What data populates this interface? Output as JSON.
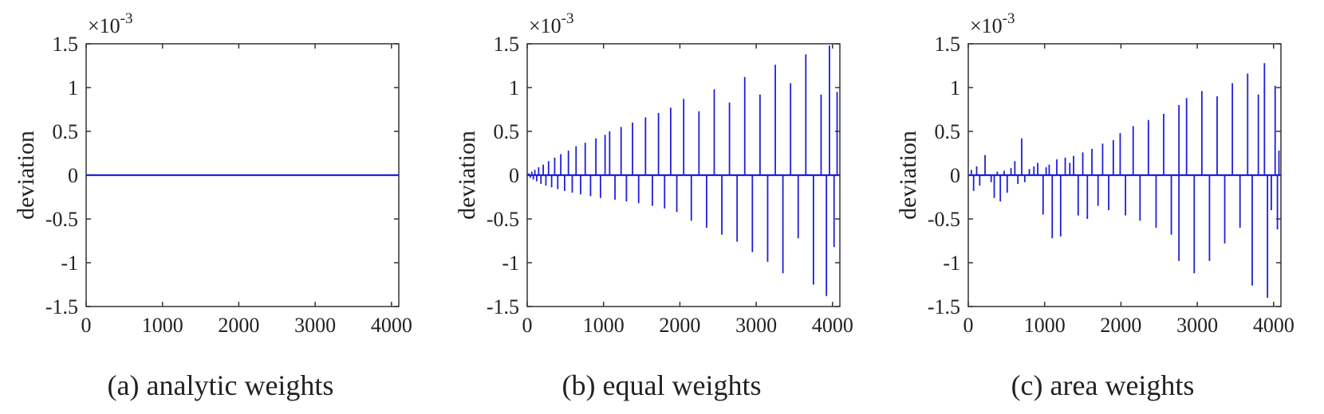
{
  "chart_data": [
    {
      "type": "line",
      "caption": "(a) analytic weights",
      "ylabel": "deviation",
      "xlim": [
        0,
        4096
      ],
      "ylim": [
        -1.5,
        1.5
      ],
      "x_ticks": [
        0,
        1000,
        2000,
        3000,
        4000
      ],
      "x_tick_labels": [
        "0",
        "1000",
        "2000",
        "3000",
        "4000"
      ],
      "y_ticks": [
        -1.5,
        -1,
        -0.5,
        0,
        0.5,
        1,
        1.5
      ],
      "y_tick_labels": [
        "-1.5",
        "-1",
        "-0.5",
        "0",
        "0.5",
        "1",
        "1.5"
      ],
      "scale_multiplier": "10",
      "scale_exponent": "-3",
      "series_color": "#1f1fd6",
      "grid": false,
      "spikes": []
    },
    {
      "type": "line",
      "caption": "(b) equal weights",
      "ylabel": "deviation",
      "xlim": [
        0,
        4096
      ],
      "ylim": [
        -1.5,
        1.5
      ],
      "x_ticks": [
        0,
        1000,
        2000,
        3000,
        4000
      ],
      "x_tick_labels": [
        "0",
        "1000",
        "2000",
        "3000",
        "4000"
      ],
      "y_ticks": [
        -1.5,
        -1,
        -0.5,
        0,
        0.5,
        1,
        1.5
      ],
      "y_tick_labels": [
        "-1.5",
        "-1",
        "-0.5",
        "0",
        "0.5",
        "1",
        "1.5"
      ],
      "scale_multiplier": "10",
      "scale_exponent": "-3",
      "series_color": "#1f1fd6",
      "grid": false,
      "spikes": [
        {
          "x": 20,
          "y": 0.02
        },
        {
          "x": 40,
          "y": -0.03
        },
        {
          "x": 60,
          "y": 0.04
        },
        {
          "x": 80,
          "y": -0.05
        },
        {
          "x": 100,
          "y": 0.06
        },
        {
          "x": 125,
          "y": -0.07
        },
        {
          "x": 150,
          "y": 0.09
        },
        {
          "x": 180,
          "y": -0.1
        },
        {
          "x": 210,
          "y": 0.12
        },
        {
          "x": 245,
          "y": -0.12
        },
        {
          "x": 280,
          "y": 0.16
        },
        {
          "x": 320,
          "y": -0.14
        },
        {
          "x": 360,
          "y": 0.2
        },
        {
          "x": 400,
          "y": -0.16
        },
        {
          "x": 440,
          "y": 0.24
        },
        {
          "x": 490,
          "y": -0.18
        },
        {
          "x": 540,
          "y": 0.28
        },
        {
          "x": 590,
          "y": -0.2
        },
        {
          "x": 640,
          "y": 0.33
        },
        {
          "x": 700,
          "y": -0.22
        },
        {
          "x": 760,
          "y": 0.37
        },
        {
          "x": 830,
          "y": -0.24
        },
        {
          "x": 900,
          "y": 0.42
        },
        {
          "x": 960,
          "y": -0.26
        },
        {
          "x": 1020,
          "y": 0.46
        },
        {
          "x": 1080,
          "y": 0.5
        },
        {
          "x": 1150,
          "y": -0.28
        },
        {
          "x": 1230,
          "y": 0.55
        },
        {
          "x": 1300,
          "y": -0.3
        },
        {
          "x": 1380,
          "y": 0.6
        },
        {
          "x": 1460,
          "y": -0.32
        },
        {
          "x": 1550,
          "y": 0.66
        },
        {
          "x": 1640,
          "y": -0.35
        },
        {
          "x": 1720,
          "y": 0.71
        },
        {
          "x": 1800,
          "y": -0.38
        },
        {
          "x": 1880,
          "y": 0.77
        },
        {
          "x": 1960,
          "y": -0.42
        },
        {
          "x": 2050,
          "y": 0.87
        },
        {
          "x": 2150,
          "y": -0.52
        },
        {
          "x": 2250,
          "y": 0.73
        },
        {
          "x": 2350,
          "y": -0.6
        },
        {
          "x": 2450,
          "y": 0.98
        },
        {
          "x": 2550,
          "y": -0.68
        },
        {
          "x": 2650,
          "y": 0.83
        },
        {
          "x": 2750,
          "y": -0.76
        },
        {
          "x": 2850,
          "y": 1.12
        },
        {
          "x": 2950,
          "y": -0.88
        },
        {
          "x": 3050,
          "y": 0.92
        },
        {
          "x": 3150,
          "y": -0.99
        },
        {
          "x": 3250,
          "y": 1.26
        },
        {
          "x": 3350,
          "y": -1.12
        },
        {
          "x": 3450,
          "y": 1.05
        },
        {
          "x": 3550,
          "y": -0.72
        },
        {
          "x": 3650,
          "y": 1.38
        },
        {
          "x": 3750,
          "y": -1.25
        },
        {
          "x": 3850,
          "y": 0.92
        },
        {
          "x": 3920,
          "y": -1.38
        },
        {
          "x": 3960,
          "y": 1.48
        },
        {
          "x": 4020,
          "y": -0.82
        },
        {
          "x": 4060,
          "y": 0.95
        }
      ]
    },
    {
      "type": "line",
      "caption": "(c) area weights",
      "ylabel": "deviation",
      "xlim": [
        0,
        4096
      ],
      "ylim": [
        -1.5,
        1.5
      ],
      "x_ticks": [
        0,
        1000,
        2000,
        3000,
        4000
      ],
      "x_tick_labels": [
        "0",
        "1000",
        "2000",
        "3000",
        "4000"
      ],
      "y_ticks": [
        -1.5,
        -1,
        -0.5,
        0,
        0.5,
        1,
        1.5
      ],
      "y_tick_labels": [
        "-1.5",
        "-1",
        "-0.5",
        "0",
        "0.5",
        "1",
        "1.5"
      ],
      "scale_multiplier": "10",
      "scale_exponent": "-3",
      "series_color": "#1f1fd6",
      "grid": false,
      "spikes": [
        {
          "x": 40,
          "y": 0.06
        },
        {
          "x": 70,
          "y": -0.18
        },
        {
          "x": 110,
          "y": 0.1
        },
        {
          "x": 150,
          "y": -0.12
        },
        {
          "x": 220,
          "y": 0.23
        },
        {
          "x": 300,
          "y": -0.08
        },
        {
          "x": 340,
          "y": -0.26
        },
        {
          "x": 380,
          "y": 0.04
        },
        {
          "x": 420,
          "y": -0.3
        },
        {
          "x": 470,
          "y": 0.05
        },
        {
          "x": 510,
          "y": -0.2
        },
        {
          "x": 560,
          "y": 0.08
        },
        {
          "x": 610,
          "y": 0.16
        },
        {
          "x": 650,
          "y": -0.1
        },
        {
          "x": 700,
          "y": 0.42
        },
        {
          "x": 740,
          "y": -0.08
        },
        {
          "x": 800,
          "y": 0.07
        },
        {
          "x": 860,
          "y": 0.1
        },
        {
          "x": 910,
          "y": 0.14
        },
        {
          "x": 980,
          "y": -0.45
        },
        {
          "x": 1020,
          "y": 0.09
        },
        {
          "x": 1060,
          "y": 0.12
        },
        {
          "x": 1100,
          "y": -0.72
        },
        {
          "x": 1160,
          "y": 0.18
        },
        {
          "x": 1210,
          "y": -0.7
        },
        {
          "x": 1270,
          "y": 0.2
        },
        {
          "x": 1330,
          "y": 0.14
        },
        {
          "x": 1380,
          "y": 0.22
        },
        {
          "x": 1440,
          "y": -0.46
        },
        {
          "x": 1500,
          "y": 0.26
        },
        {
          "x": 1560,
          "y": -0.5
        },
        {
          "x": 1620,
          "y": 0.3
        },
        {
          "x": 1700,
          "y": -0.35
        },
        {
          "x": 1760,
          "y": 0.36
        },
        {
          "x": 1840,
          "y": -0.4
        },
        {
          "x": 1900,
          "y": 0.4
        },
        {
          "x": 1990,
          "y": 0.48
        },
        {
          "x": 2060,
          "y": -0.46
        },
        {
          "x": 2160,
          "y": 0.56
        },
        {
          "x": 2250,
          "y": -0.52
        },
        {
          "x": 2360,
          "y": 0.63
        },
        {
          "x": 2460,
          "y": -0.6
        },
        {
          "x": 2560,
          "y": 0.7
        },
        {
          "x": 2660,
          "y": -0.68
        },
        {
          "x": 2760,
          "y": 0.8
        },
        {
          "x": 2760,
          "y": -0.98
        },
        {
          "x": 2860,
          "y": 0.88
        },
        {
          "x": 2960,
          "y": -1.12
        },
        {
          "x": 3060,
          "y": 0.96
        },
        {
          "x": 3160,
          "y": -0.98
        },
        {
          "x": 3260,
          "y": 0.9
        },
        {
          "x": 3360,
          "y": -0.78
        },
        {
          "x": 3460,
          "y": 1.05
        },
        {
          "x": 3560,
          "y": -0.6
        },
        {
          "x": 3660,
          "y": 1.16
        },
        {
          "x": 3720,
          "y": -1.26
        },
        {
          "x": 3800,
          "y": 0.92
        },
        {
          "x": 3880,
          "y": 1.28
        },
        {
          "x": 3920,
          "y": -1.4
        },
        {
          "x": 3970,
          "y": -0.4
        },
        {
          "x": 4020,
          "y": 1.02
        },
        {
          "x": 4050,
          "y": -0.62
        },
        {
          "x": 4070,
          "y": 0.28
        }
      ]
    }
  ]
}
